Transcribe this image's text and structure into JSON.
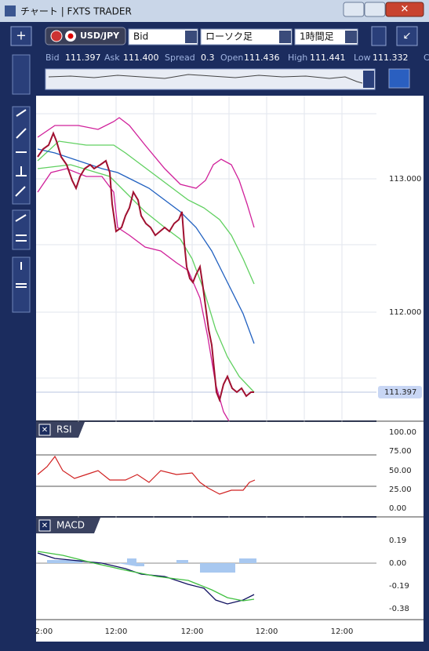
{
  "titlebar": {
    "title": "チャート | FXTS TRADER"
  },
  "toolbar": {
    "symbol": "USD/JPY",
    "price_side": "Bid",
    "chart_type": "ローソク足",
    "timeframe": "1時間足"
  },
  "quote": {
    "bid_label": "Bid",
    "bid": "111.397",
    "ask_label": "Ask",
    "ask": "111.400",
    "spread_label": "Spread",
    "spread": "0.3",
    "open_label": "Open",
    "open": "111.436",
    "high_label": "High",
    "high": "111.441",
    "low_label": "Low",
    "low": "111.332",
    "close_label": "C"
  },
  "chart": {
    "price_labels": [
      "113.000",
      "112.000"
    ],
    "current_price": "111.397"
  },
  "rsi": {
    "title": "RSI",
    "labels": [
      "100.00",
      "75.00",
      "50.00",
      "25.00",
      "0.00"
    ]
  },
  "macd": {
    "title": "MACD",
    "labels": [
      "0.19",
      "0.00",
      "-0.19",
      "-0.38"
    ]
  },
  "time_labels": [
    "2:00",
    "12:00",
    "12:00",
    "12:00",
    "12:00"
  ]
}
